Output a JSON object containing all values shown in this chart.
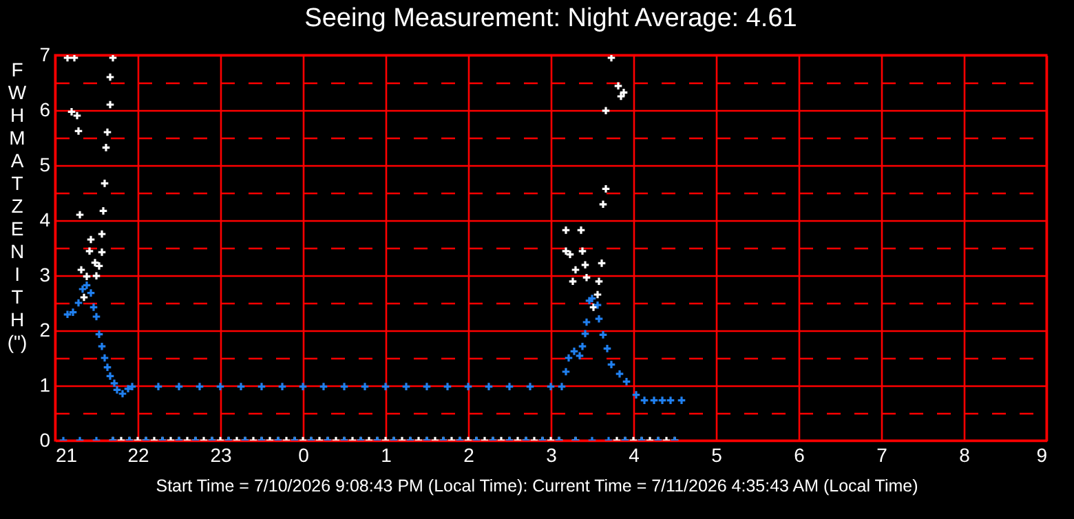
{
  "chart_data": {
    "type": "scatter",
    "title": "Seeing Measurement: Night Average: 4.61",
    "ylabel": "FWHM AT ZENITH (\")",
    "annotations": [
      "Start Time = 7/10/2026 9:08:43 PM (Local Time): Current Time = 7/11/2026 4:35:43 AM (Local Time)"
    ],
    "xlim": [
      "2026-07-10T21:00",
      "2026-07-11T09:00"
    ],
    "xticks": [
      {
        "value": "2026-07-10T21:00",
        "label": "21"
      },
      {
        "value": "2026-07-10T22:00",
        "label": "22"
      },
      {
        "value": "2026-07-10T23:00",
        "label": "23"
      },
      {
        "value": "2026-07-11T00:00",
        "label": "0"
      },
      {
        "value": "2026-07-11T01:00",
        "label": "1"
      },
      {
        "value": "2026-07-11T02:00",
        "label": "2"
      },
      {
        "value": "2026-07-11T03:00",
        "label": "3"
      },
      {
        "value": "2026-07-11T04:00",
        "label": "4"
      },
      {
        "value": "2026-07-11T05:00",
        "label": "5"
      },
      {
        "value": "2026-07-11T06:00",
        "label": "6"
      },
      {
        "value": "2026-07-11T07:00",
        "label": "7"
      },
      {
        "value": "2026-07-11T08:00",
        "label": "8"
      },
      {
        "value": "2026-07-11T09:00",
        "label": "9"
      }
    ],
    "ylim": [
      0,
      7
    ],
    "yticks": [
      0,
      {
        "value": 0.5,
        "label": null
      },
      1,
      {
        "value": 1.5,
        "label": null
      },
      2,
      {
        "value": 2.5,
        "label": null
      },
      3,
      {
        "value": 3.5,
        "label": null
      },
      4,
      {
        "value": 4.5,
        "label": null
      },
      5,
      {
        "value": 5.5,
        "label": null
      },
      6,
      {
        "value": 6.5,
        "label": null
      },
      7
    ],
    "grid": true,
    "legend": false,
    "marker": "cross",
    "series": [
      {
        "color": "#ffffff",
        "x": [
          "2026-07-10T21:09",
          "2026-07-10T21:14",
          "2026-07-10T21:42",
          "2026-07-10T21:40",
          "2026-07-10T21:12",
          "2026-07-10T21:16",
          "2026-07-10T21:40",
          "2026-07-10T21:17",
          "2026-07-10T21:38",
          "2026-07-10T21:37",
          "2026-07-10T21:36",
          "2026-07-10T21:35",
          "2026-07-10T21:18",
          "2026-07-10T21:34",
          "2026-07-10T21:26",
          "2026-07-10T21:25",
          "2026-07-10T21:34",
          "2026-07-10T21:29",
          "2026-07-10T21:32",
          "2026-07-10T21:19",
          "2026-07-10T21:30",
          "2026-07-10T21:23",
          "2026-07-10T21:21",
          "2026-07-11T03:44",
          "2026-07-11T03:49",
          "2026-07-11T03:53",
          "2026-07-11T03:51",
          "2026-07-11T03:40",
          "2026-07-11T03:40",
          "2026-07-11T03:38",
          "2026-07-11T03:11",
          "2026-07-11T03:22",
          "2026-07-11T03:11",
          "2026-07-11T03:14",
          "2026-07-11T03:23",
          "2026-07-11T03:25",
          "2026-07-11T03:37",
          "2026-07-11T03:18",
          "2026-07-11T03:16",
          "2026-07-11T03:26",
          "2026-07-11T03:35",
          "2026-07-11T03:34",
          "2026-07-11T03:31"
        ],
        "values": [
          6.95,
          6.95,
          6.95,
          6.6,
          5.97,
          5.9,
          6.1,
          5.62,
          5.6,
          5.32,
          4.67,
          4.17,
          4.1,
          3.75,
          3.65,
          3.44,
          3.42,
          3.23,
          3.17,
          3.1,
          2.99,
          2.98,
          2.6,
          6.95,
          6.44,
          6.32,
          6.25,
          5.99,
          4.57,
          4.29,
          3.82,
          3.82,
          3.44,
          3.38,
          3.44,
          3.19,
          3.22,
          3.1,
          2.89,
          2.96,
          2.89,
          2.65,
          2.42
        ]
      },
      {
        "color": "#ffffff",
        "x": [
          "2026-07-10T21:42",
          "2026-07-10T21:48",
          "2026-07-10T21:54",
          "2026-07-10T22:00",
          "2026-07-10T22:06",
          "2026-07-10T22:12",
          "2026-07-10T22:18",
          "2026-07-10T22:24",
          "2026-07-10T22:30",
          "2026-07-10T22:36",
          "2026-07-10T22:42",
          "2026-07-10T22:48",
          "2026-07-10T22:54",
          "2026-07-10T23:00",
          "2026-07-10T23:06",
          "2026-07-10T23:12",
          "2026-07-10T23:18",
          "2026-07-10T23:24",
          "2026-07-10T23:30",
          "2026-07-10T23:36",
          "2026-07-10T23:42",
          "2026-07-10T23:48",
          "2026-07-10T23:54",
          "2026-07-11T00:00",
          "2026-07-11T00:06",
          "2026-07-11T00:12",
          "2026-07-11T00:18",
          "2026-07-11T00:24",
          "2026-07-11T00:30",
          "2026-07-11T00:36",
          "2026-07-11T00:42",
          "2026-07-11T00:48",
          "2026-07-11T00:54",
          "2026-07-11T01:00",
          "2026-07-11T01:06",
          "2026-07-11T01:12",
          "2026-07-11T01:18",
          "2026-07-11T01:24",
          "2026-07-11T01:30",
          "2026-07-11T01:36",
          "2026-07-11T01:42",
          "2026-07-11T01:48",
          "2026-07-11T01:54",
          "2026-07-11T02:00",
          "2026-07-11T02:06",
          "2026-07-11T02:12",
          "2026-07-11T02:18",
          "2026-07-11T02:24",
          "2026-07-11T02:30",
          "2026-07-11T02:36",
          "2026-07-11T02:42",
          "2026-07-11T02:48",
          "2026-07-11T02:54",
          "2026-07-11T03:00",
          "2026-07-11T03:06",
          "2026-07-11T03:18",
          "2026-07-11T03:48",
          "2026-07-11T03:54",
          "2026-07-11T04:00",
          "2026-07-11T04:06",
          "2026-07-11T04:12",
          "2026-07-11T04:18",
          "2026-07-11T04:24",
          "2026-07-11T04:30"
        ],
        "values": [
          0,
          0,
          0,
          0,
          0,
          0,
          0,
          0,
          0,
          0,
          0,
          0,
          0,
          0,
          0,
          0,
          0,
          0,
          0,
          0,
          0,
          0,
          0,
          0,
          0,
          0,
          0,
          0,
          0,
          0,
          0,
          0,
          0,
          0,
          0,
          0,
          0,
          0,
          0,
          0,
          0,
          0,
          0,
          0,
          0,
          0,
          0,
          0,
          0,
          0,
          0,
          0,
          0,
          0,
          0,
          0,
          0,
          0,
          0,
          0,
          0,
          0,
          0,
          0
        ]
      },
      {
        "color": "#2080f0",
        "x": [
          "2026-07-10T21:09",
          "2026-07-10T21:13",
          "2026-07-10T21:17",
          "2026-07-10T21:20",
          "2026-07-10T21:23",
          "2026-07-10T21:26",
          "2026-07-10T21:28",
          "2026-07-10T21:30",
          "2026-07-10T21:32",
          "2026-07-10T21:34",
          "2026-07-10T21:36",
          "2026-07-10T21:38",
          "2026-07-10T21:40",
          "2026-07-10T21:43",
          "2026-07-10T21:45",
          "2026-07-10T21:49",
          "2026-07-10T21:53",
          "2026-07-10T21:56",
          "2026-07-10T22:15",
          "2026-07-10T22:30",
          "2026-07-10T22:45",
          "2026-07-10T23:00",
          "2026-07-10T23:15",
          "2026-07-10T23:30",
          "2026-07-10T23:45",
          "2026-07-11T00:00",
          "2026-07-11T00:15",
          "2026-07-11T00:30",
          "2026-07-11T00:45",
          "2026-07-11T01:00",
          "2026-07-11T01:15",
          "2026-07-11T01:30",
          "2026-07-11T01:45",
          "2026-07-11T02:00",
          "2026-07-11T02:15",
          "2026-07-11T02:30",
          "2026-07-11T02:45",
          "2026-07-11T03:00",
          "2026-07-11T03:08",
          "2026-07-11T03:11",
          "2026-07-11T03:13",
          "2026-07-11T03:17",
          "2026-07-11T03:21",
          "2026-07-11T03:23",
          "2026-07-11T03:25",
          "2026-07-11T03:26",
          "2026-07-11T03:28",
          "2026-07-11T03:30",
          "2026-07-11T03:34",
          "2026-07-11T03:35",
          "2026-07-11T03:38",
          "2026-07-11T03:41",
          "2026-07-11T03:44",
          "2026-07-11T03:50",
          "2026-07-11T03:55",
          "2026-07-11T04:02",
          "2026-07-11T04:08",
          "2026-07-11T04:15",
          "2026-07-11T04:21",
          "2026-07-11T04:27",
          "2026-07-11T04:35"
        ],
        "values": [
          2.29,
          2.33,
          2.5,
          2.75,
          2.82,
          2.68,
          2.42,
          2.25,
          1.93,
          1.71,
          1.5,
          1.33,
          1.17,
          1.04,
          0.92,
          0.85,
          0.94,
          0.98,
          0.98,
          0.98,
          0.98,
          0.98,
          0.98,
          0.98,
          0.98,
          0.98,
          0.98,
          0.98,
          0.98,
          0.98,
          0.98,
          0.98,
          0.98,
          0.98,
          0.98,
          0.98,
          0.98,
          0.98,
          0.98,
          1.25,
          1.5,
          1.62,
          1.54,
          1.71,
          1.94,
          2.15,
          2.54,
          2.58,
          2.46,
          2.21,
          1.92,
          1.67,
          1.38,
          1.21,
          1.07,
          0.83,
          0.73,
          0.73,
          0.73,
          0.73,
          0.73
        ]
      },
      {
        "color": "#2080f0",
        "x": [
          "2026-07-10T21:06",
          "2026-07-10T21:18",
          "2026-07-10T21:30",
          "2026-07-10T21:42",
          "2026-07-10T21:54",
          "2026-07-10T22:06",
          "2026-07-10T22:18",
          "2026-07-10T22:30",
          "2026-07-10T22:42",
          "2026-07-10T22:54",
          "2026-07-10T23:06",
          "2026-07-10T23:18",
          "2026-07-10T23:30",
          "2026-07-10T23:42",
          "2026-07-10T23:54",
          "2026-07-11T00:06",
          "2026-07-11T00:18",
          "2026-07-11T00:30",
          "2026-07-11T00:42",
          "2026-07-11T00:54",
          "2026-07-11T01:06",
          "2026-07-11T01:18",
          "2026-07-11T01:30",
          "2026-07-11T01:42",
          "2026-07-11T01:54",
          "2026-07-11T02:06",
          "2026-07-11T02:18",
          "2026-07-11T02:30",
          "2026-07-11T02:42",
          "2026-07-11T02:54",
          "2026-07-11T03:06",
          "2026-07-11T03:18",
          "2026-07-11T03:30",
          "2026-07-11T03:42",
          "2026-07-11T03:54",
          "2026-07-11T04:06",
          "2026-07-11T04:18",
          "2026-07-11T04:30"
        ],
        "values": [
          0,
          0,
          0,
          0,
          0,
          0,
          0,
          0,
          0,
          0,
          0,
          0,
          0,
          0,
          0,
          0,
          0,
          0,
          0,
          0,
          0,
          0,
          0,
          0,
          0,
          0,
          0,
          0,
          0,
          0,
          0,
          0,
          0,
          0,
          0,
          0,
          0,
          0
        ]
      }
    ]
  }
}
